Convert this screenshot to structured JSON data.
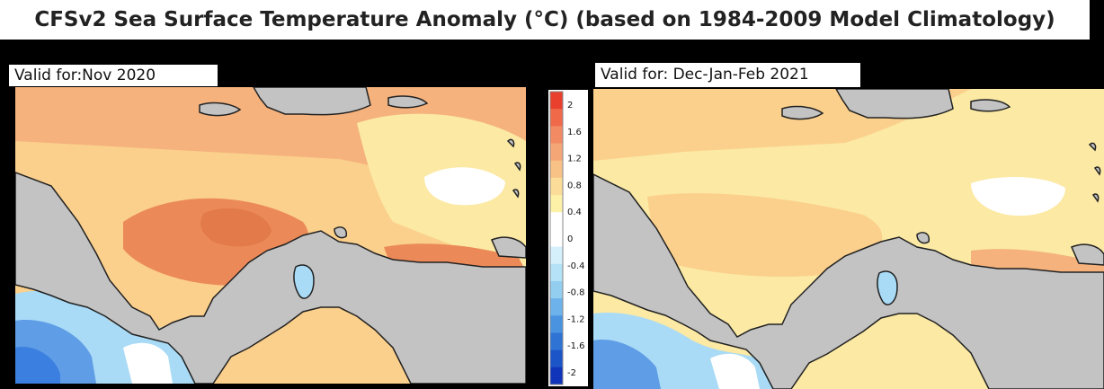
{
  "title": "CFSv2 Sea Surface Temperature Anomaly (°C) (based on 1984-2009 Model Climatology)",
  "panels": [
    {
      "label": "Valid for:Nov 2020"
    },
    {
      "label": "Valid for: Dec-Jan-Feb 2021"
    }
  ],
  "colorbar": {
    "ticks": [
      "2",
      "1.6",
      "1.2",
      "0.8",
      "0.4",
      "0",
      "-0.4",
      "-0.8",
      "-1.2",
      "-1.6",
      "-2"
    ],
    "colors": [
      "#e8402d",
      "#f06a4a",
      "#f28a64",
      "#f4a677",
      "#f8c287",
      "#fbdc98",
      "#fdf1a8",
      "#ffffff",
      "#ffffff",
      "#d6f0fb",
      "#b5e2f6",
      "#93cdf0",
      "#6db2ea",
      "#4a93e0",
      "#2f73d4",
      "#1c55c8",
      "#1035ba"
    ]
  },
  "colors": {
    "land": "#c3c3c3",
    "coast": "#222222",
    "warm_strong": "#eb8a58",
    "warm": "#f5b27d",
    "warm_light": "#fbd08c",
    "pale": "#fbe9a4",
    "neutral": "#ffffff",
    "cool": "#a9dbf6",
    "cold": "#5f9de6",
    "colder": "#3b7fe0"
  }
}
